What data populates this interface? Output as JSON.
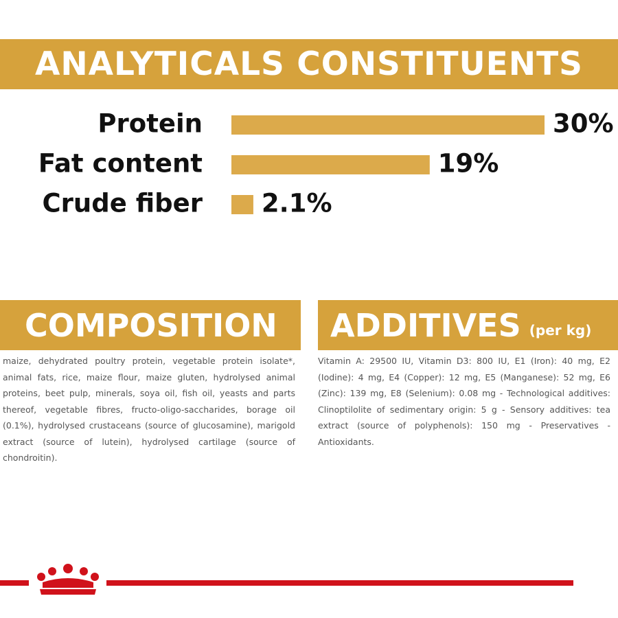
{
  "chart_data": {
    "type": "bar",
    "title": "ANALYTICALS CONSTITUENTS",
    "categories": [
      "Protein",
      "Fat content",
      "Crude fiber"
    ],
    "values": [
      30,
      19,
      2.1
    ],
    "value_labels": [
      "30%",
      "19%",
      "2.1%"
    ],
    "color": "#dcaa4b"
  },
  "composition": {
    "title": "COMPOSITION",
    "text": "maize, dehydrated poultry protein, vegetable protein isolate*, animal fats, rice, maize flour, maize gluten, hydrolysed animal proteins, beet pulp, minerals, soya oil, fish oil, yeasts and parts thereof, vegetable fibres, fructo-oligo-saccharides, borage oil (0.1%), hydrolysed crustaceans (source of glucosamine), marigold extract (source of lutein), hydrolysed cartilage (source of chondroitin)."
  },
  "additives": {
    "title": "ADDITIVES",
    "subtitle": "(per kg)",
    "text": "Vitamin A: 29500 IU, Vitamin D3: 800 IU, E1 (Iron): 40 mg, E2 (Iodine): 4 mg, E4 (Copper): 12 mg, E5 (Manganese): 52 mg, E6 (Zinc): 139 mg, E8 (Selenium): 0.08 mg - Technological additives: Clinoptilolite of sedimentary origin: 5 g - Sensory additives: tea extract (source of polyphenols): 150 mg - Preservatives - Antioxidants."
  }
}
